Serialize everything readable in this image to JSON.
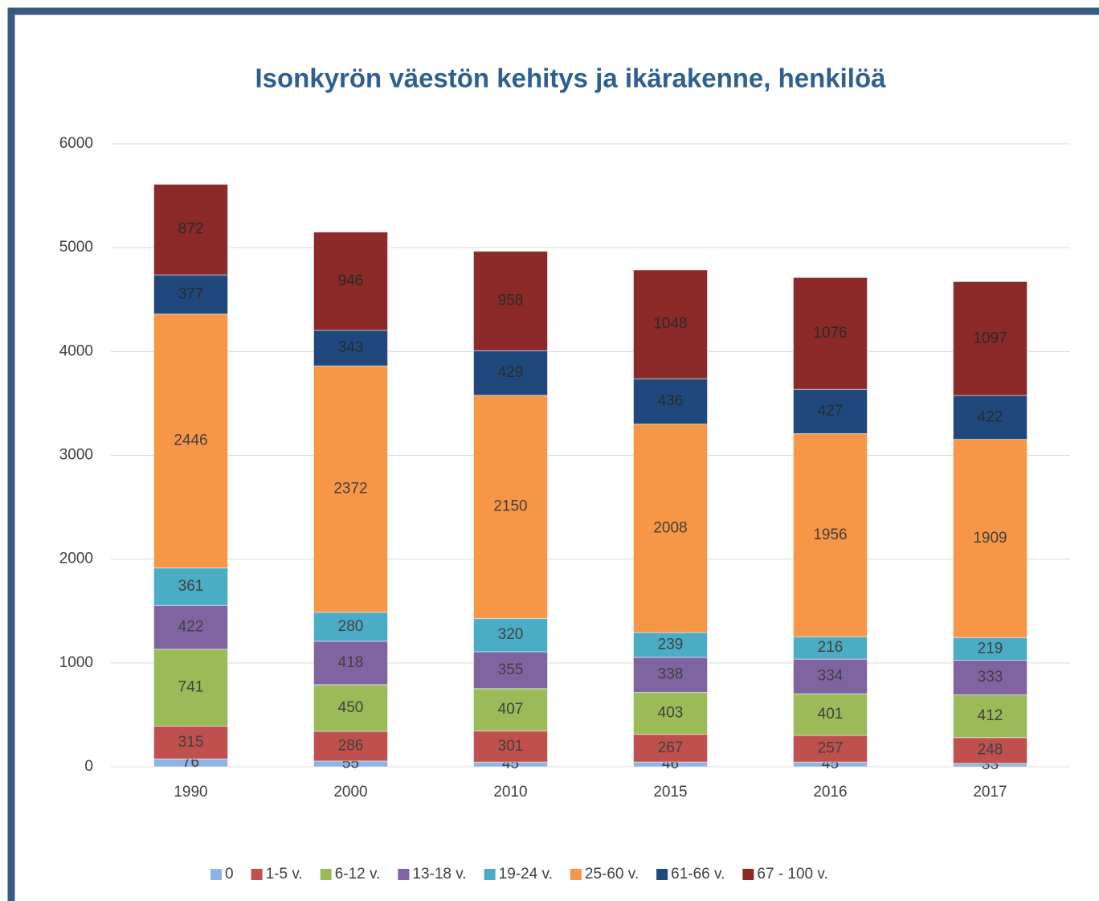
{
  "chart_data": {
    "type": "stacked_bar",
    "title": "Isonkyrön väestön kehitys ja ikärakenne, henkilöä",
    "categories": [
      "1990",
      "2000",
      "2010",
      "2015",
      "2016",
      "2017"
    ],
    "series": [
      {
        "name": "0",
        "color": "#8db4e2",
        "values": [
          76,
          55,
          45,
          46,
          45,
          33
        ]
      },
      {
        "name": "1-5 v.",
        "color": "#c0504d",
        "values": [
          315,
          286,
          301,
          267,
          257,
          248
        ]
      },
      {
        "name": "6-12 v.",
        "color": "#9bbb59",
        "values": [
          741,
          450,
          407,
          403,
          401,
          412
        ]
      },
      {
        "name": "13-18 v.",
        "color": "#8064a2",
        "values": [
          422,
          418,
          355,
          338,
          334,
          333
        ]
      },
      {
        "name": "19-24 v.",
        "color": "#4bacc6",
        "values": [
          361,
          280,
          320,
          239,
          216,
          219
        ]
      },
      {
        "name": "25-60 v.",
        "color": "#f79646",
        "values": [
          2446,
          2372,
          2150,
          2008,
          1956,
          1909
        ]
      },
      {
        "name": "61-66 v.",
        "color": "#1f497d",
        "values": [
          377,
          343,
          429,
          436,
          427,
          422
        ]
      },
      {
        "name": "67 - 100 v.",
        "color": "#8b2a28",
        "values": [
          872,
          946,
          958,
          1048,
          1076,
          1097
        ]
      }
    ],
    "ylim": [
      0,
      6000
    ],
    "yticks": [
      0,
      1000,
      2000,
      3000,
      4000,
      5000,
      6000
    ],
    "grid": true,
    "legend": "bottom"
  }
}
